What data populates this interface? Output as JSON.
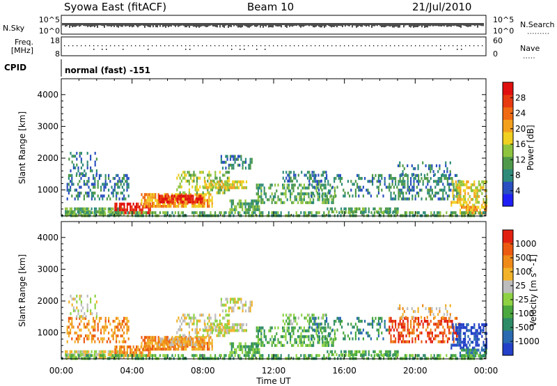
{
  "header": {
    "station": "Syowa East (fitACF)",
    "beam": "Beam 10",
    "date": "21/Jul/2010"
  },
  "aux_panels": {
    "nsky": {
      "label": "N.Sky",
      "ticks": [
        "10^5",
        "10^0"
      ]
    },
    "nsearch": {
      "label": "N.Search",
      "ticks": [
        "10^5",
        "10^0"
      ]
    },
    "freq": {
      "label_line1": "Freq.",
      "label_line2": "[MHz]",
      "ticks": [
        "18",
        "8"
      ]
    },
    "nave": {
      "label": "Nave",
      "ticks": [
        "60",
        "0"
      ]
    },
    "cpid": {
      "label": "CPID",
      "value": "normal (fast) -151"
    }
  },
  "colors": {
    "power_scale": [
      "#1f1ff5",
      "#2a4fc0",
      "#2e8b7a",
      "#4f9a4a",
      "#8fc43f",
      "#f0d020",
      "#f3a01e",
      "#ef6a12",
      "#e83a10",
      "#e0100e"
    ],
    "velocity_scale": [
      "#2240c8",
      "#2a6ab0",
      "#2e8b67",
      "#4aa83f",
      "#8ed243",
      "#bdbdbd",
      "#f2b229",
      "#ef8a18",
      "#ec5a12",
      "#e22010"
    ]
  },
  "chart_data": [
    {
      "type": "heatmap",
      "quantity": "Power",
      "ylabel": "Slant Range [km]",
      "xlabel": "Time UT",
      "xlim": [
        "00:00",
        "24:00"
      ],
      "ylim": [
        180,
        4500
      ],
      "x_ticks": [
        "00:00",
        "04:00",
        "08:00",
        "12:00",
        "16:00",
        "20:00",
        "00:00"
      ],
      "y_ticks": [
        "1000",
        "2000",
        "3000",
        "4000"
      ],
      "colorbar": {
        "label": "Power [dB]",
        "ticks": [
          "4",
          "8",
          "12",
          "16",
          "20",
          "24",
          "28"
        ],
        "range": [
          0,
          30
        ]
      }
    },
    {
      "type": "heatmap",
      "quantity": "Velocity",
      "ylabel": "Slant Range [km]",
      "xlabel": "Time UT",
      "xlim": [
        "00:00",
        "24:00"
      ],
      "ylim": [
        180,
        4500
      ],
      "x_ticks": [
        "00:00",
        "04:00",
        "08:00",
        "12:00",
        "16:00",
        "20:00",
        "00:00"
      ],
      "y_ticks": [
        "1000",
        "2000",
        "3000",
        "4000"
      ],
      "colorbar": {
        "label": "Velocity [m s^-1]",
        "ticks": [
          "1000",
          "500",
          "100",
          "25",
          "-25",
          "-100",
          "-500",
          "-1000"
        ]
      }
    }
  ]
}
